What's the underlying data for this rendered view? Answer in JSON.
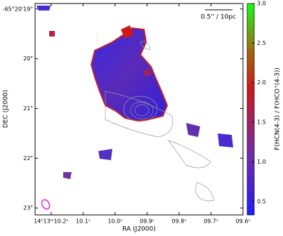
{
  "chart_data": {
    "type": "image",
    "xlabel": "RA (J2000)",
    "ylabel": "DEC (J2000)",
    "colorbar_label": "F(HCN(4-3) / F(HCO⁺(4-3))",
    "scale_bar": "0.5'' / 10pc",
    "xlim": [
      10.25,
      9.6
    ],
    "xticks": [
      {
        "value": 10.2,
        "label": "14ʰ13ᵐ10.2ˢ"
      },
      {
        "value": 10.1,
        "label": "10.1ˢ"
      },
      {
        "value": 10.0,
        "label": "10.0ˢ"
      },
      {
        "value": 9.9,
        "label": "09.9ˢ"
      },
      {
        "value": 9.8,
        "label": "09.8ˢ"
      },
      {
        "value": 9.7,
        "label": "09.7ˢ"
      },
      {
        "value": 9.6,
        "label": "09.6ˢ"
      }
    ],
    "ylim": [
      23.14,
      18.89
    ],
    "yticks": [
      {
        "value": 19,
        "label": "-65°20'19\""
      },
      {
        "value": 20,
        "label": "20\""
      },
      {
        "value": 21,
        "label": "21\""
      },
      {
        "value": 22,
        "label": "22\""
      },
      {
        "value": 23,
        "label": "23\""
      }
    ],
    "clim": [
      0.33,
      3.0
    ],
    "cticks": [
      0.5,
      {
        "value": 1,
        "label": "1.0"
      },
      1.5,
      {
        "value": 2,
        "label": "2.0"
      },
      2.5,
      {
        "value": 3,
        "label": "3.0"
      }
    ]
  }
}
